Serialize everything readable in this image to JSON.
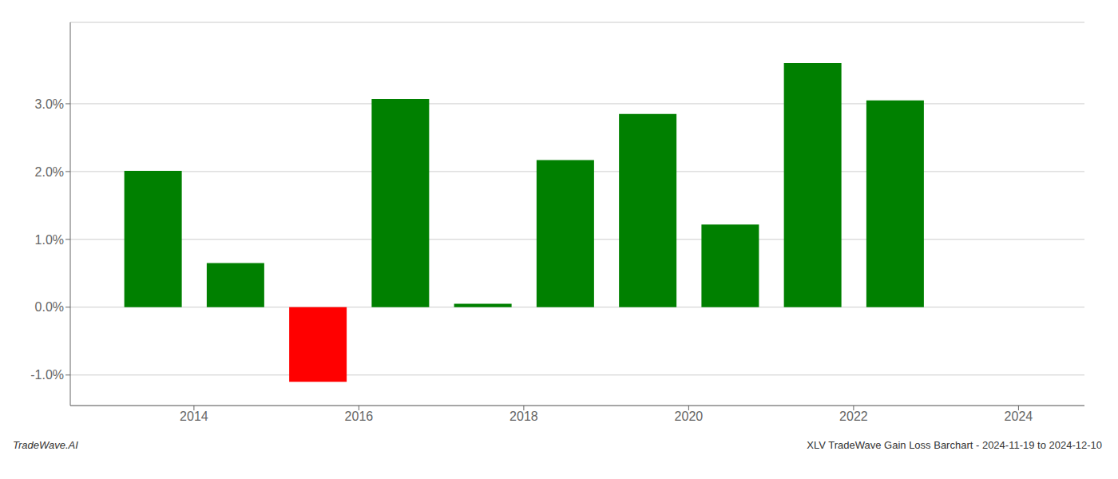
{
  "chart_data": {
    "type": "bar",
    "x": [
      2013.5,
      2014.5,
      2015.5,
      2016.5,
      2017.5,
      2018.5,
      2019.5,
      2020.5,
      2021.5,
      2022.5
    ],
    "values": [
      0.0201,
      0.0065,
      -0.011,
      0.0307,
      0.0005,
      0.0217,
      0.0285,
      0.0122,
      0.036,
      0.0305
    ],
    "colors": [
      "#008000",
      "#008000",
      "#ff0000",
      "#008000",
      "#008000",
      "#008000",
      "#008000",
      "#008000",
      "#008000",
      "#008000"
    ],
    "xlim": [
      2012.5,
      2024.8
    ],
    "xticks": [
      2014,
      2016,
      2018,
      2020,
      2022,
      2024
    ],
    "ylim": [
      -0.0145,
      0.042
    ],
    "yticks": [
      {
        "value": -0.01,
        "label": "-1.0%"
      },
      {
        "value": 0.0,
        "label": "0.0%"
      },
      {
        "value": 0.01,
        "label": "1.0%"
      },
      {
        "value": 0.02,
        "label": "2.0%"
      },
      {
        "value": 0.03,
        "label": "3.0%"
      }
    ],
    "grid": "y",
    "annotations": [
      "TradeWave.AI",
      "XLV TradeWave Gain Loss Barchart - 2024-11-19 to 2024-12-10"
    ]
  }
}
